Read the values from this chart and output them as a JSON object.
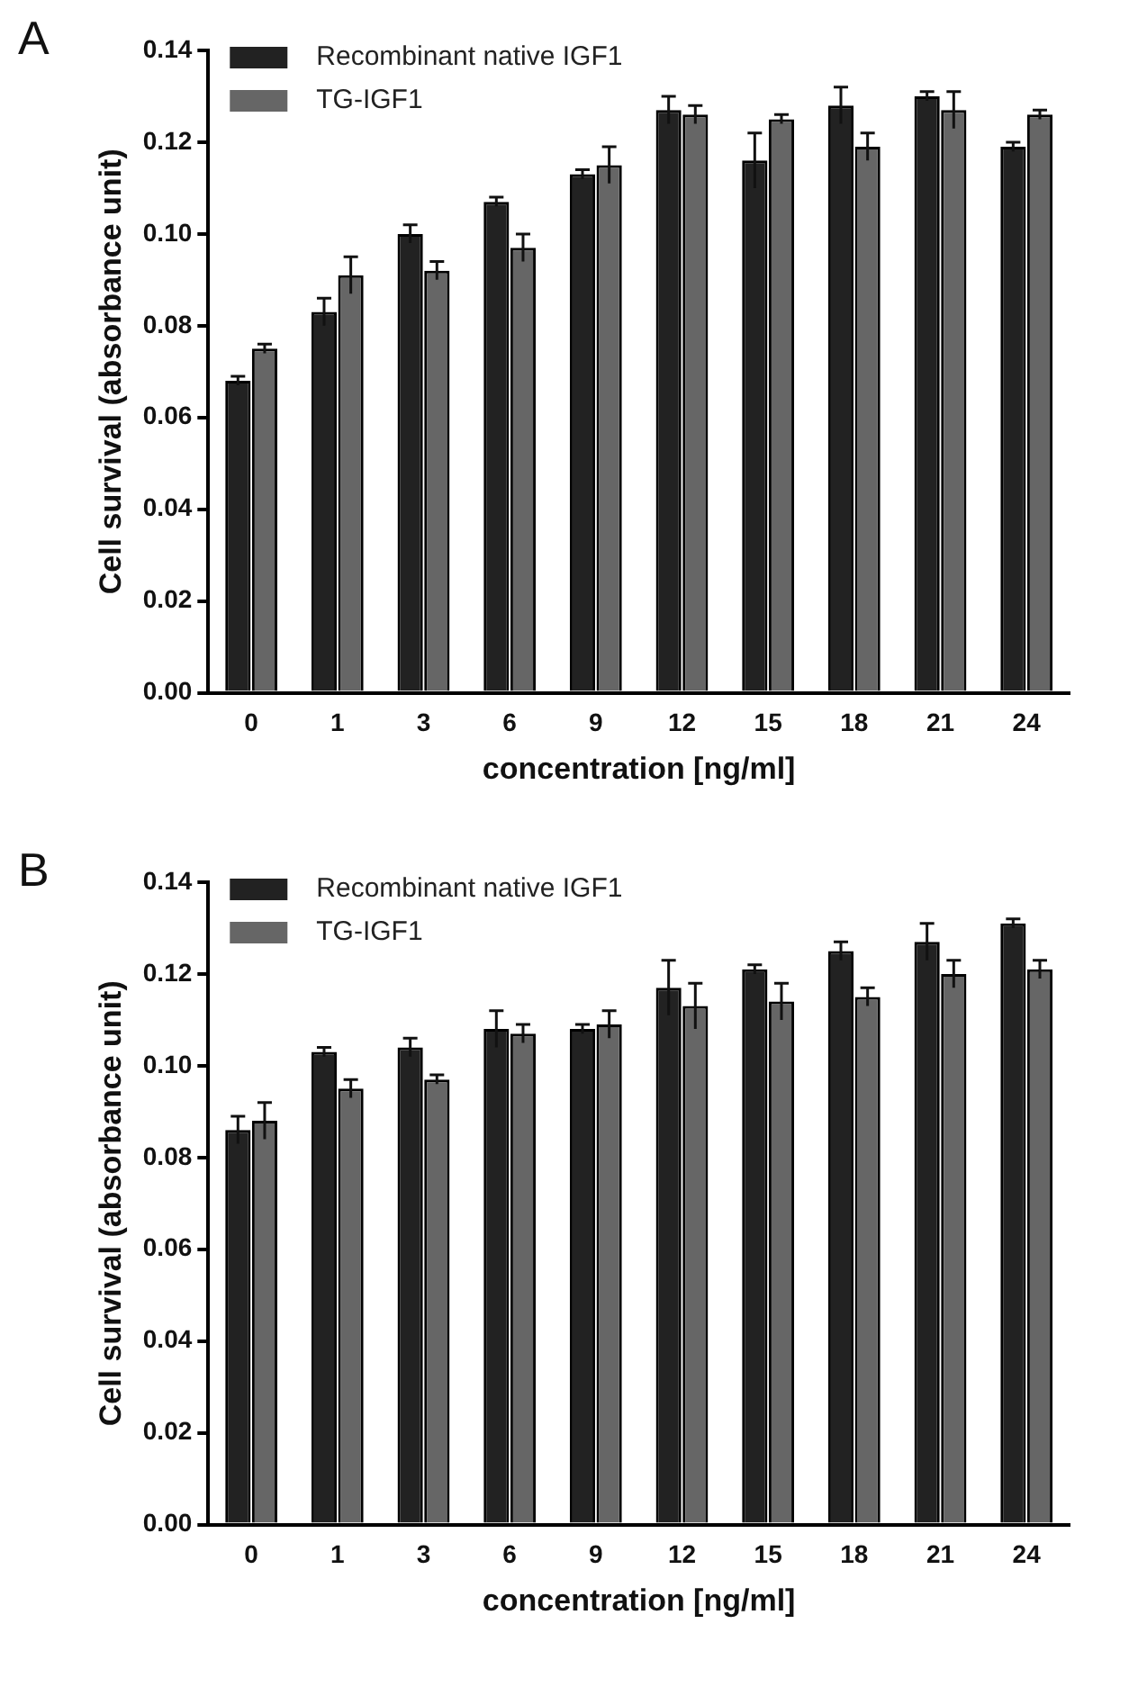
{
  "chart_data": [
    {
      "type": "bar",
      "annotations": [
        "A"
      ],
      "xlabel": "concentration [ng/ml]",
      "ylabel": "Cell survival (absorbance unit)",
      "categories": [
        "0",
        "1",
        "3",
        "6",
        "9",
        "12",
        "15",
        "18",
        "21",
        "24"
      ],
      "ylim": [
        0,
        0.14
      ],
      "yticks": [
        {
          "value": 0,
          "label": "0.00"
        },
        {
          "value": 0.02,
          "label": "0.02"
        },
        {
          "value": 0.04,
          "label": "0.04"
        },
        {
          "value": 0.06,
          "label": "0.06"
        },
        {
          "value": 0.08,
          "label": "0.08"
        },
        {
          "value": 0.1,
          "label": "0.10"
        },
        {
          "value": 0.12,
          "label": "0.12"
        },
        {
          "value": 0.14,
          "label": "0.14"
        }
      ],
      "grid": false,
      "legend": "top left",
      "series": [
        {
          "name": "Recombinant native IGF1",
          "color": "#222222",
          "values": [
            0.068,
            0.083,
            0.1,
            0.107,
            0.113,
            0.127,
            0.116,
            0.128,
            0.13,
            0.119
          ],
          "errors": [
            0.001,
            0.003,
            0.002,
            0.001,
            0.001,
            0.003,
            0.006,
            0.004,
            0.001,
            0.001
          ]
        },
        {
          "name": "TG-IGF1",
          "color": "#666666",
          "values": [
            0.075,
            0.091,
            0.092,
            0.097,
            0.115,
            0.126,
            0.125,
            0.119,
            0.127,
            0.126
          ],
          "errors": [
            0.001,
            0.004,
            0.002,
            0.003,
            0.004,
            0.002,
            0.001,
            0.003,
            0.004,
            0.001
          ]
        }
      ]
    },
    {
      "type": "bar",
      "annotations": [
        "B"
      ],
      "xlabel": "concentration [ng/ml]",
      "ylabel": "Cell survival (absorbance unit)",
      "categories": [
        "0",
        "1",
        "3",
        "6",
        "9",
        "12",
        "15",
        "18",
        "21",
        "24"
      ],
      "ylim": [
        0,
        0.14
      ],
      "yticks": [
        {
          "value": 0,
          "label": "0.00"
        },
        {
          "value": 0.02,
          "label": "0.02"
        },
        {
          "value": 0.04,
          "label": "0.04"
        },
        {
          "value": 0.06,
          "label": "0.06"
        },
        {
          "value": 0.08,
          "label": "0.08"
        },
        {
          "value": 0.1,
          "label": "0.10"
        },
        {
          "value": 0.12,
          "label": "0.12"
        },
        {
          "value": 0.14,
          "label": "0.14"
        }
      ],
      "grid": false,
      "legend": "top left",
      "series": [
        {
          "name": "Recombinant native IGF1",
          "color": "#222222",
          "values": [
            0.086,
            0.103,
            0.104,
            0.108,
            0.108,
            0.117,
            0.121,
            0.125,
            0.127,
            0.131
          ],
          "errors": [
            0.003,
            0.001,
            0.002,
            0.004,
            0.001,
            0.006,
            0.001,
            0.002,
            0.004,
            0.001
          ]
        },
        {
          "name": "TG-IGF1",
          "color": "#666666",
          "values": [
            0.088,
            0.095,
            0.097,
            0.107,
            0.109,
            0.113,
            0.114,
            0.115,
            0.12,
            0.121
          ],
          "errors": [
            0.004,
            0.002,
            0.001,
            0.002,
            0.003,
            0.005,
            0.004,
            0.002,
            0.003,
            0.002
          ]
        }
      ]
    }
  ]
}
